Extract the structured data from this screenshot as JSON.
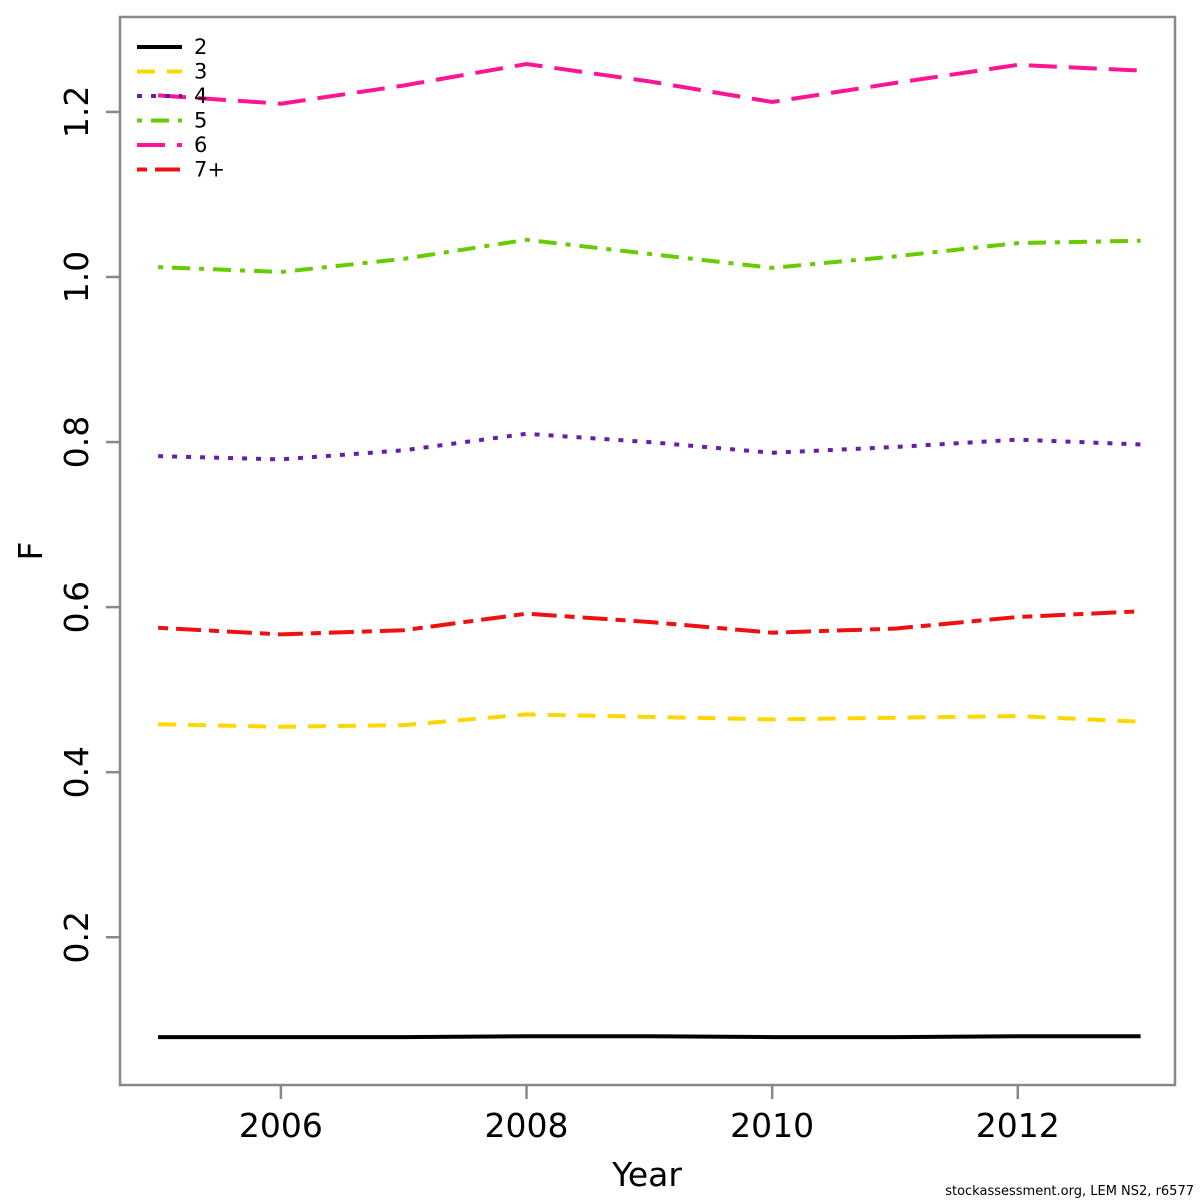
{
  "footer": "stockassessment.org, LEM  NS2, r6577",
  "chart_data": {
    "type": "line",
    "title": "",
    "xlabel": "Year",
    "ylabel": "F",
    "x": [
      2005,
      2006,
      2007,
      2008,
      2009,
      2010,
      2011,
      2012,
      2013
    ],
    "x_ticks": [
      2006,
      2008,
      2010,
      2012
    ],
    "y_ticks": [
      0.2,
      0.4,
      0.6,
      0.8,
      1.0,
      1.2
    ],
    "xlim": [
      2004.69,
      2013.28
    ],
    "ylim": [
      0.021,
      1.315
    ],
    "grid": false,
    "legend_position": "top-left-inside",
    "box_color": "#888888",
    "series": [
      {
        "name": "2",
        "color": "#000000",
        "lty": "solid",
        "dash": "",
        "values": [
          0.079,
          0.079,
          0.079,
          0.08,
          0.08,
          0.079,
          0.079,
          0.08,
          0.08
        ]
      },
      {
        "name": "3",
        "color": "#FFD700",
        "lty": "dashed",
        "dash": "18 12",
        "values": [
          0.458,
          0.455,
          0.457,
          0.47,
          0.467,
          0.464,
          0.466,
          0.468,
          0.461
        ]
      },
      {
        "name": "4",
        "color": "#681DA8",
        "lty": "dotted",
        "dash": "5 9",
        "values": [
          0.783,
          0.779,
          0.79,
          0.81,
          0.8,
          0.787,
          0.794,
          0.803,
          0.797
        ]
      },
      {
        "name": "5",
        "color": "#66CC00",
        "lty": "dotdash",
        "dash": "5 9 18 9",
        "values": [
          1.012,
          1.006,
          1.022,
          1.045,
          1.028,
          1.011,
          1.025,
          1.041,
          1.044
        ]
      },
      {
        "name": "6",
        "color": "#FF1493",
        "lty": "longdash",
        "dash": "28 12",
        "values": [
          1.22,
          1.21,
          1.232,
          1.258,
          1.237,
          1.212,
          1.235,
          1.257,
          1.25
        ]
      },
      {
        "name": "7+",
        "color": "#EE1111",
        "lty": "twodash",
        "dash": "10 8 25 8",
        "values": [
          0.575,
          0.567,
          0.572,
          0.592,
          0.582,
          0.569,
          0.574,
          0.588,
          0.595
        ]
      }
    ]
  }
}
